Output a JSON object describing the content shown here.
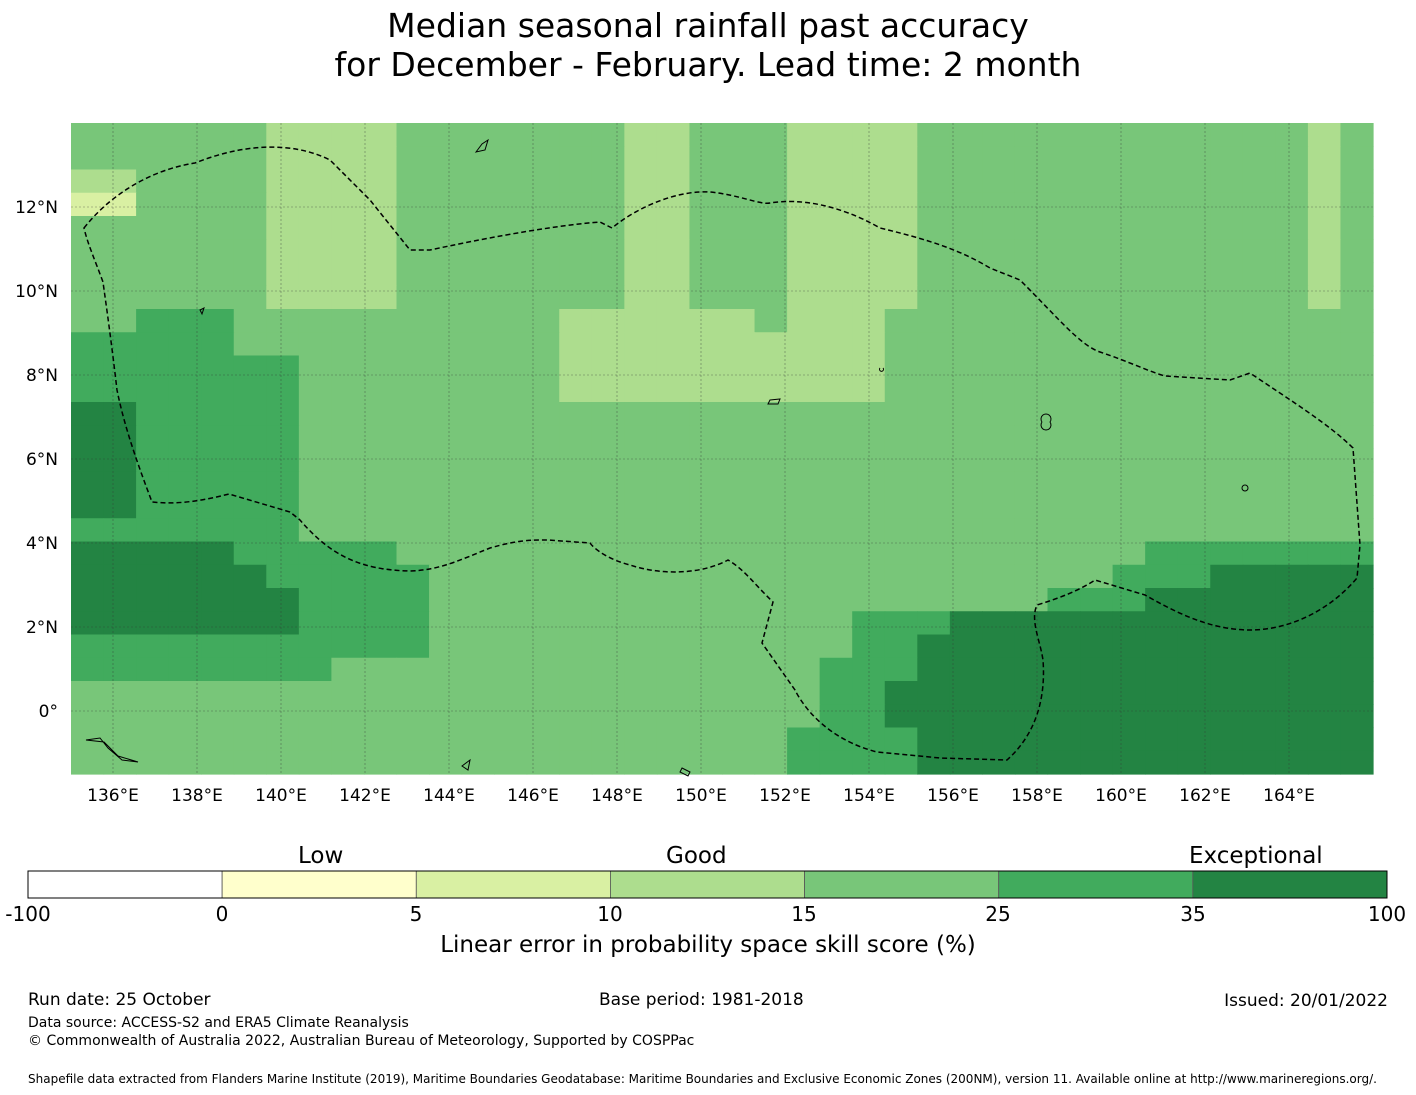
{
  "title": {
    "line1": "Median seasonal rainfall past accuracy",
    "line2": "for December - February. Lead time: 2 month"
  },
  "map": {
    "lon_labels": [
      "136°E",
      "138°E",
      "140°E",
      "142°E",
      "144°E",
      "146°E",
      "148°E",
      "150°E",
      "152°E",
      "154°E",
      "156°E",
      "158°E",
      "160°E",
      "162°E",
      "164°E"
    ],
    "lat_labels": [
      "12°N",
      "10°N",
      "8°N",
      "6°N",
      "4°N",
      "2°N",
      "0°"
    ],
    "region_outline": "EEZ boundary (dashed)",
    "grid": "dotted graticule every 2°"
  },
  "chart_data": {
    "type": "heatmap",
    "variable": "LEPS skill score (%)",
    "lon_range_deg": [
      135.0,
      166.0
    ],
    "lat_range_deg": [
      -1.5,
      14.0
    ],
    "cell_size_deg": 0.83,
    "category_codes": {
      "0": "-100 to 0",
      "1": "0 to 5",
      "2": "5 to 10",
      "3": "10 to 15",
      "4": "15 to 25",
      "5": "25 to 35",
      "6": "35 to 100"
    },
    "rows_north_to_south": [
      "4444443333444444433444333344444444444434",
      "4444443333444444433444333344444444444434",
      "3344443333444444433444333344444444444434",
      "2244443333444444433444333344444444444434",
      "4444443333444444433444333344444444444434",
      "4444443333444444433444333344444444444434",
      "4444443333444444433444333344444444444434",
      "4444443333444444433444333344444444444434",
      "4455544444444443333334333444444444444444",
      "5555544444444443333333333444444444444444",
      "5555555444444443333333333444444444444444",
      "5555555444444443333333333444444444444444",
      "6655555444444444444444444444444444444444",
      "6655555444444444444444444444444444444444",
      "6655555444444444444444444444444444444444",
      "6655555444444444444444444444444444444444",
      "6655555444444444444444444444444444444444",
      "5555555444444444444444444444444444444444",
      "6666655555444444444444444444444445555555",
      "6666665555544444444444444444444455566666",
      "6666666555544444444444444444445556666666",
      "6666666555544444444444445556666666666666",
      "5555555555544444444444445566666666666666",
      "5555555544444444444444455566666666666666",
      "4444444444444444444444455666666666666666",
      "4444444444444444444444455666666666666666",
      "4444444444444444444444555566666666666666",
      "4444444444444444444444555566666666666666"
    ],
    "title": "Median seasonal rainfall past accuracy for December - February. Lead time: 2 month"
  },
  "colorbar": {
    "label": "Linear error in probability space skill score (%)",
    "categories": [
      "Low",
      "Good",
      "Exceptional"
    ],
    "ticks": [
      "-100",
      "0",
      "5",
      "10",
      "15",
      "25",
      "35",
      "100"
    ],
    "colors": [
      "#ffffff",
      "#ffffcc",
      "#d9f0a3",
      "#addd8e",
      "#78c679",
      "#41ab5d",
      "#238443"
    ]
  },
  "footer": {
    "run_date": "Run date: 25 October",
    "base_period": "Base period: 1981-2018",
    "issued": "Issued: 20/01/2022",
    "data_source": "Data source: ACCESS-S2 and ERA5 Climate Reanalysis",
    "copyright": "© Commonwealth of Australia 2022, Australian Bureau of Meteorology, Supported by COSPPac",
    "shapefile": "Shapefile data extracted from Flanders Marine Institute (2019), Maritime Boundaries Geodatabase: Maritime Boundaries and Exclusive Economic Zones (200NM), version 11. Available online at http://www.marineregions.org/."
  }
}
